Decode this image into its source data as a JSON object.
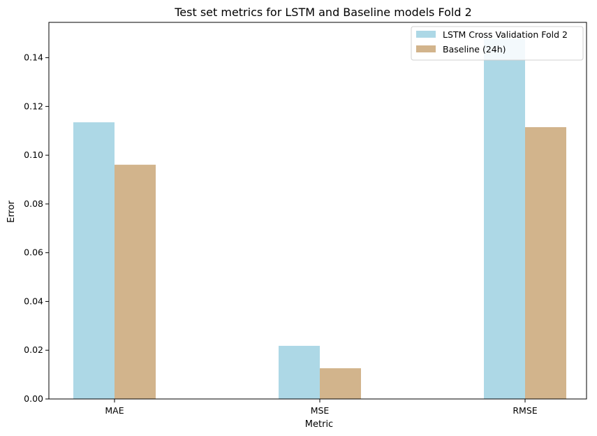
{
  "chart_data": {
    "type": "bar",
    "title": "Test set metrics for LSTM and Baseline models Fold 2",
    "xlabel": "Metric",
    "ylabel": "Error",
    "categories": [
      "MAE",
      "MSE",
      "RMSE"
    ],
    "series": [
      {
        "name": "LSTM Cross Validation Fold 2",
        "color": "#add8e6",
        "values": [
          0.1135,
          0.0218,
          0.1477
        ]
      },
      {
        "name": "Baseline (24h)",
        "color": "#d2b48c",
        "values": [
          0.0961,
          0.0126,
          0.1115
        ]
      }
    ],
    "ylim": [
      0,
      0.1545
    ],
    "yticks": [
      "0.00",
      "0.02",
      "0.04",
      "0.06",
      "0.08",
      "0.10",
      "0.12",
      "0.14"
    ],
    "grid": false,
    "legend_position": "top-right"
  }
}
